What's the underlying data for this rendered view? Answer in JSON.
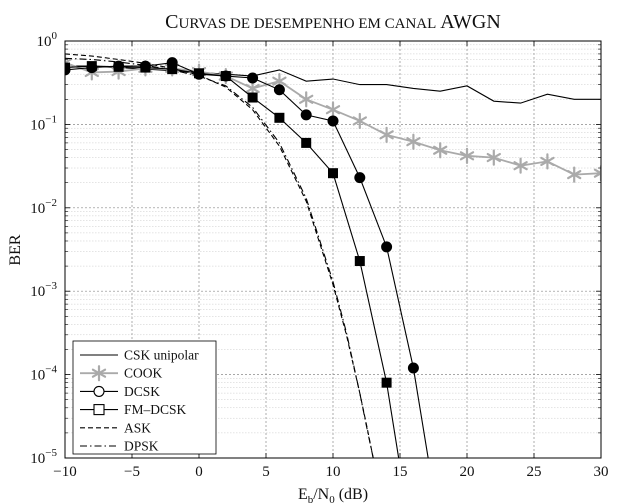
{
  "chart_data": {
    "type": "line",
    "title": "Curvas de desempenho em canal AWGN",
    "xlabel": {
      "base": "E",
      "sub1": "b",
      "mid": "/N",
      "sub2": "0",
      "unit": " (dB)"
    },
    "ylabel": "BER",
    "x_ticks": [
      -10,
      -5,
      0,
      5,
      10,
      15,
      20,
      25,
      30
    ],
    "xlim": [
      -10,
      30
    ],
    "ylim": [
      1e-05,
      1
    ],
    "y_scale": "log",
    "y_ticks": [
      {
        "base": "10",
        "exp": "0"
      },
      {
        "base": "10",
        "exp": "−1"
      },
      {
        "base": "10",
        "exp": "−2"
      },
      {
        "base": "10",
        "exp": "−3"
      },
      {
        "base": "10",
        "exp": "−4"
      },
      {
        "base": "10",
        "exp": "−5"
      }
    ],
    "grid": true,
    "legend_position": "bottom-left",
    "series": [
      {
        "name": "CSK unipolar",
        "color": "#000000",
        "line": "solid",
        "marker": "none",
        "x": [
          -10,
          -8,
          -6,
          -4,
          -2,
          0,
          2,
          4,
          6,
          8,
          10,
          12,
          14,
          16,
          18,
          20,
          22,
          24,
          26,
          28,
          30
        ],
        "y": [
          0.5,
          0.5,
          0.48,
          0.46,
          0.44,
          0.42,
          0.4,
          0.38,
          0.45,
          0.33,
          0.35,
          0.3,
          0.3,
          0.27,
          0.25,
          0.29,
          0.19,
          0.18,
          0.23,
          0.2,
          0.2
        ]
      },
      {
        "name": "COOK",
        "color": "#aaaaaa",
        "line": "solid",
        "marker": "asterisk",
        "x": [
          -10,
          -8,
          -6,
          -4,
          -2,
          0,
          2,
          4,
          6,
          8,
          10,
          12,
          14,
          16,
          18,
          20,
          22,
          24,
          26,
          28,
          30
        ],
        "y": [
          0.55,
          0.42,
          0.43,
          0.47,
          0.47,
          0.43,
          0.38,
          0.27,
          0.33,
          0.2,
          0.15,
          0.11,
          0.075,
          0.062,
          0.049,
          0.042,
          0.04,
          0.032,
          0.036,
          0.025,
          0.026
        ]
      },
      {
        "name": "DCSK",
        "color": "#000000",
        "line": "solid",
        "marker": "circle",
        "x": [
          -10,
          -8,
          -6,
          -4,
          -2,
          0,
          2,
          4,
          6,
          8,
          10,
          12,
          14,
          16,
          17.1
        ],
        "y": [
          0.45,
          0.48,
          0.5,
          0.5,
          0.55,
          0.4,
          0.38,
          0.36,
          0.26,
          0.13,
          0.11,
          0.023,
          0.0034,
          0.00012,
          1e-05
        ]
      },
      {
        "name": "FM–DCSK",
        "color": "#000000",
        "line": "solid",
        "marker": "square",
        "x": [
          -10,
          -8,
          -6,
          -4,
          -2,
          0,
          2,
          4,
          6,
          8,
          10,
          12,
          14,
          14.9
        ],
        "y": [
          0.48,
          0.5,
          0.49,
          0.48,
          0.46,
          0.41,
          0.38,
          0.21,
          0.12,
          0.06,
          0.026,
          0.0023,
          8e-05,
          1e-05
        ]
      },
      {
        "name": "ASK",
        "color": "#000000",
        "line": "dashed",
        "marker": "none",
        "x": [
          -10,
          -8,
          -6,
          -4,
          -2,
          0,
          2,
          4,
          6,
          8,
          10,
          11,
          12,
          12.5,
          13,
          13.5
        ],
        "y": [
          0.7,
          0.66,
          0.6,
          0.54,
          0.47,
          0.39,
          0.28,
          0.15,
          0.055,
          0.012,
          0.0012,
          0.0003,
          6e-05,
          2.5e-05,
          1e-05,
          4e-06
        ]
      },
      {
        "name": "DPSK",
        "color": "#000000",
        "line": "dashdot",
        "marker": "none",
        "x": [
          -10,
          -8,
          -6,
          -4,
          -2,
          0,
          2,
          4,
          6,
          8,
          10,
          11,
          12,
          12.5,
          13,
          13.5
        ],
        "y": [
          0.62,
          0.6,
          0.56,
          0.51,
          0.45,
          0.38,
          0.29,
          0.16,
          0.06,
          0.013,
          0.0013,
          0.00032,
          6e-05,
          2.4e-05,
          1e-05,
          4e-06
        ]
      }
    ]
  }
}
